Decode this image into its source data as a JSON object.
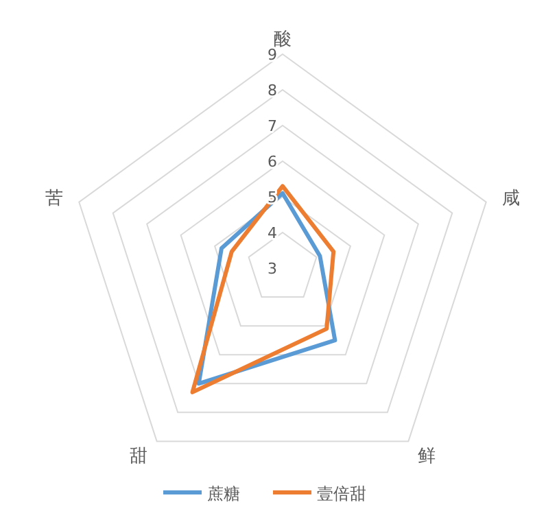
{
  "chart_data": {
    "type": "radar",
    "categories": [
      "酸",
      "咸",
      "鲜",
      "甜",
      "苦"
    ],
    "series": [
      {
        "name": "蔗糖",
        "color": "#5b9bd5",
        "values": [
          5.1,
          4.1,
          5.5,
          7.0,
          4.8
        ]
      },
      {
        "name": "壹倍甜",
        "color": "#ed7d31",
        "values": [
          5.3,
          4.5,
          5.1,
          7.3,
          4.5
        ]
      }
    ],
    "ylim": [
      3,
      9
    ],
    "yticks": [
      3,
      4,
      5,
      6,
      7,
      8,
      9
    ],
    "grid": true,
    "legend": "bottom"
  }
}
